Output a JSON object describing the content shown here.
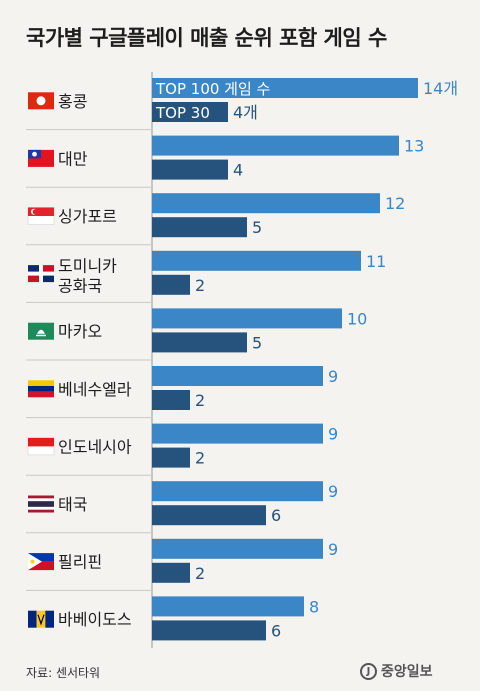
{
  "title": "국가별 구글플레이 매출 순위 포함 게임 수",
  "source": "자료: 센서타워",
  "brand": {
    "mark": "J",
    "name": "중앙일보"
  },
  "colors": {
    "top100": "#3b86c6",
    "top30": "#26537d",
    "label_top100": "#3b86c6",
    "label_top30": "#26537d",
    "divider": "#c9c7c1",
    "axis": "#999999"
  },
  "chart_data": {
    "type": "bar",
    "orientation": "horizontal",
    "categories": [
      "홍콩",
      "대만",
      "싱가포르",
      "도미니카 공화국",
      "마카오",
      "베네수엘라",
      "인도네시아",
      "태국",
      "필리핀",
      "바베이도스"
    ],
    "category_flags": [
      "hong-kong-flag",
      "taiwan-flag",
      "singapore-flag",
      "dominican-republic-flag",
      "macao-flag",
      "venezuela-flag",
      "indonesia-flag",
      "thailand-flag",
      "philippines-flag",
      "barbados-flag"
    ],
    "series": [
      {
        "name": "TOP 100 게임 수",
        "values": [
          14,
          13,
          12,
          11,
          10,
          9,
          9,
          9,
          9,
          8
        ]
      },
      {
        "name": "TOP 30",
        "values": [
          4,
          4,
          5,
          2,
          5,
          2,
          2,
          6,
          2,
          6
        ]
      }
    ],
    "first_value_label": "14개",
    "first_value_label_top30": "4개",
    "xlim": [
      0,
      14
    ]
  }
}
